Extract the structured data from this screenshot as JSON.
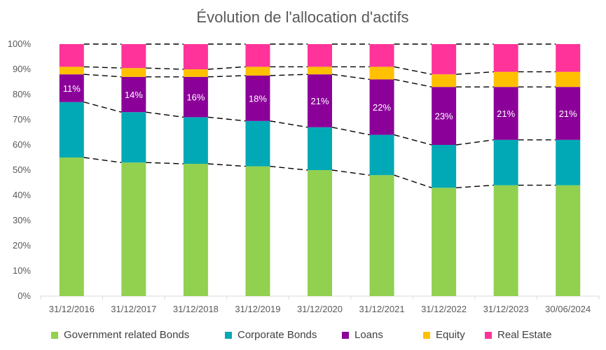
{
  "chart_data": {
    "type": "bar",
    "stacked": true,
    "percent_stacked": true,
    "title": "Évolution de l'allocation d'actifs",
    "categories": [
      "31/12/2016",
      "31/12/2017",
      "31/12/2018",
      "31/12/2019",
      "31/12/2020",
      "31/12/2021",
      "31/12/2022",
      "31/12/2023",
      "30/06/2024"
    ],
    "ylim": [
      0,
      100
    ],
    "yticks": [
      "0%",
      "10%",
      "20%",
      "30%",
      "40%",
      "50%",
      "60%",
      "70%",
      "80%",
      "90%",
      "100%"
    ],
    "grid": false,
    "legend_position": "bottom",
    "connector_lines": "dashed",
    "series": [
      {
        "name": "Government related Bonds",
        "color": "#92D050",
        "values": [
          55,
          53,
          52.5,
          51.5,
          50,
          48,
          43,
          44,
          44
        ]
      },
      {
        "name": "Corporate Bonds",
        "color": "#00A9B5",
        "values": [
          22,
          20,
          18.5,
          18,
          17,
          16,
          17,
          18,
          18
        ]
      },
      {
        "name": "Loans",
        "color": "#8B0099",
        "values": [
          11,
          14,
          16,
          18,
          21,
          22,
          23,
          21,
          21
        ],
        "data_labels": [
          "11%",
          "14%",
          "16%",
          "18%",
          "21%",
          "22%",
          "23%",
          "21%",
          "21%"
        ]
      },
      {
        "name": "Equity",
        "color": "#FFC000",
        "values": [
          3,
          3.5,
          3,
          3.5,
          3,
          5,
          5,
          6,
          6
        ]
      },
      {
        "name": "Real Estate",
        "color": "#FF3399",
        "values": [
          9,
          9.5,
          10,
          9,
          9,
          9,
          12,
          11,
          11
        ]
      }
    ]
  }
}
